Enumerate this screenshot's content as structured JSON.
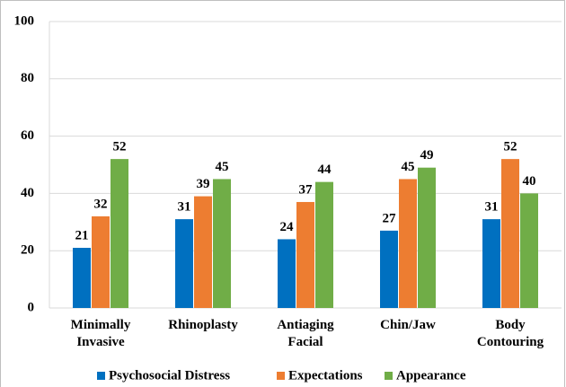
{
  "chart_data": {
    "type": "bar",
    "categories": [
      "Minimally Invasive",
      "Rhinoplasty",
      "Antiaging Facial",
      "Chin/Jaw",
      "Body Contouring"
    ],
    "series": [
      {
        "name": "Psychosocial Distress",
        "color": "#0070c0",
        "values": [
          21,
          31,
          24,
          27,
          31
        ]
      },
      {
        "name": "Expectations",
        "color": "#ed7d31",
        "values": [
          32,
          39,
          37,
          45,
          52
        ]
      },
      {
        "name": "Appearance",
        "color": "#70ad47",
        "values": [
          52,
          45,
          44,
          49,
          40
        ]
      }
    ],
    "ylim": [
      0,
      100
    ],
    "yticks": [
      0,
      20,
      40,
      60,
      80,
      100
    ],
    "grid": true
  }
}
